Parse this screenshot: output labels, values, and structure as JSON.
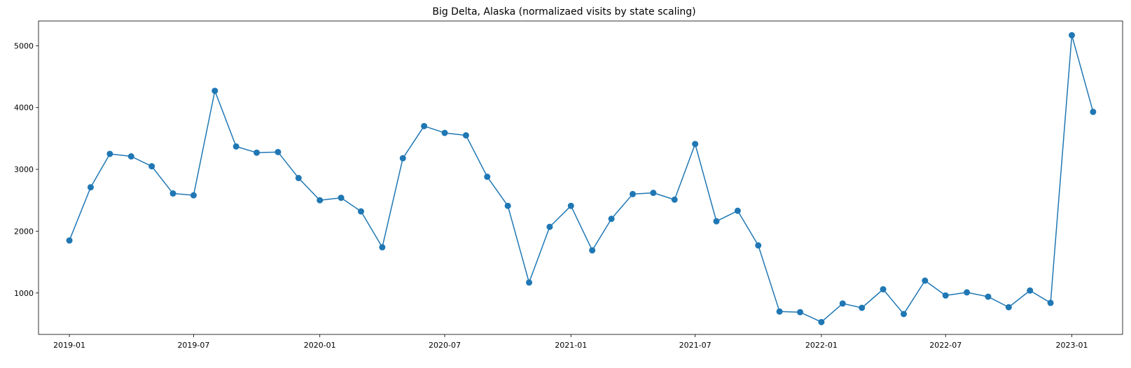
{
  "chart_data": {
    "type": "line",
    "title": "Big Delta, Alaska (normalizaed visits by state scaling)",
    "xlabel": "",
    "ylabel": "",
    "color": "#1f77b4",
    "marker": "circle",
    "grid": false,
    "xlim": [
      "2018-11-17",
      "2023-03-16"
    ],
    "ylim": [
      330,
      5400
    ],
    "xticks": [
      {
        "date": "2019-01-01",
        "label": "2019-01"
      },
      {
        "date": "2019-07-01",
        "label": "2019-07"
      },
      {
        "date": "2020-01-01",
        "label": "2020-01"
      },
      {
        "date": "2020-07-01",
        "label": "2020-07"
      },
      {
        "date": "2021-01-01",
        "label": "2021-01"
      },
      {
        "date": "2021-07-01",
        "label": "2021-07"
      },
      {
        "date": "2022-01-01",
        "label": "2022-01"
      },
      {
        "date": "2022-07-01",
        "label": "2022-07"
      },
      {
        "date": "2023-01-01",
        "label": "2023-01"
      }
    ],
    "yticks": [
      {
        "value": 1000,
        "label": "1000"
      },
      {
        "value": 2000,
        "label": "2000"
      },
      {
        "value": 3000,
        "label": "3000"
      },
      {
        "value": 4000,
        "label": "4000"
      },
      {
        "value": 5000,
        "label": "5000"
      }
    ],
    "series": [
      {
        "name": "visits",
        "x": [
          "2019-01-01",
          "2019-02-01",
          "2019-03-01",
          "2019-04-01",
          "2019-05-01",
          "2019-06-01",
          "2019-07-01",
          "2019-08-01",
          "2019-09-01",
          "2019-10-01",
          "2019-11-01",
          "2019-12-01",
          "2020-01-01",
          "2020-02-01",
          "2020-03-01",
          "2020-04-01",
          "2020-05-01",
          "2020-06-01",
          "2020-07-01",
          "2020-08-01",
          "2020-09-01",
          "2020-10-01",
          "2020-11-01",
          "2020-12-01",
          "2021-01-01",
          "2021-02-01",
          "2021-03-01",
          "2021-04-01",
          "2021-05-01",
          "2021-06-01",
          "2021-07-01",
          "2021-08-01",
          "2021-09-01",
          "2021-10-01",
          "2021-11-01",
          "2021-12-01",
          "2022-01-01",
          "2022-02-01",
          "2022-03-01",
          "2022-04-01",
          "2022-05-01",
          "2022-06-01",
          "2022-07-01",
          "2022-08-01",
          "2022-09-01",
          "2022-10-01",
          "2022-11-01",
          "2022-12-01",
          "2023-01-01",
          "2023-02-01"
        ],
        "values": [
          1850,
          2710,
          3250,
          3210,
          3050,
          2610,
          2580,
          4270,
          3370,
          3270,
          3280,
          2860,
          2500,
          2540,
          2320,
          1740,
          3180,
          3700,
          3590,
          3550,
          2880,
          2410,
          1170,
          2070,
          2410,
          1690,
          2200,
          2600,
          2620,
          2510,
          3410,
          2160,
          2330,
          1770,
          700,
          690,
          530,
          830,
          760,
          1060,
          660,
          1200,
          960,
          1010,
          940,
          770,
          1040,
          840,
          5170,
          3930
        ]
      }
    ]
  }
}
